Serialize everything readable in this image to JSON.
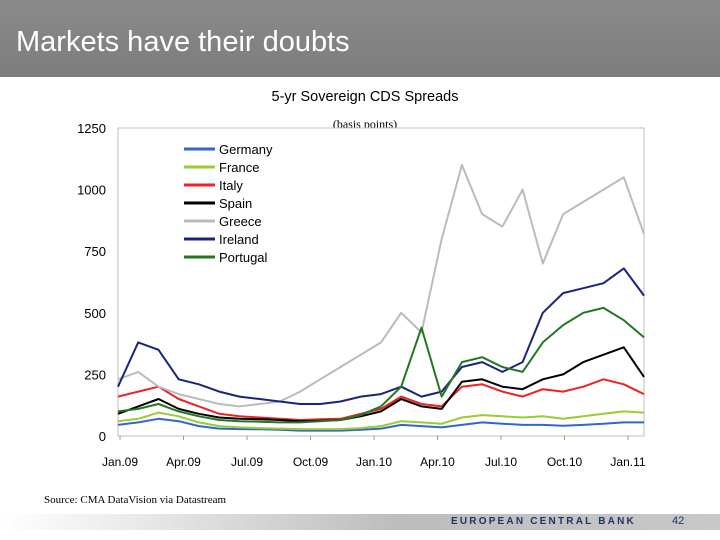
{
  "slide": {
    "title": "Markets have their doubts"
  },
  "chart_data": {
    "type": "line",
    "title": "5-yr Sovereign CDS Spreads",
    "subtitle": "(basis points)",
    "xlabel": "",
    "ylabel": "",
    "ylim": [
      0,
      1250
    ],
    "y_ticks": [
      0,
      250,
      500,
      750,
      1000,
      1250
    ],
    "x_ticks": [
      "Jan.09",
      "Apr.09",
      "Jul.09",
      "Oct.09",
      "Jan.10",
      "Apr.10",
      "Jul.10",
      "Oct.10",
      "Jan.11"
    ],
    "x_index_range": [
      0,
      26
    ],
    "legend_position": "top-left",
    "series": [
      {
        "name": "Germany",
        "color": "#3366cc",
        "x": [
          0,
          1,
          2,
          3,
          4,
          5,
          6,
          7,
          8,
          9,
          10,
          11,
          12,
          13,
          14,
          15,
          16,
          17,
          18,
          19,
          20,
          21,
          22,
          23,
          24,
          25,
          26
        ],
        "values": [
          45,
          55,
          70,
          60,
          40,
          30,
          28,
          27,
          25,
          22,
          22,
          22,
          25,
          30,
          45,
          40,
          35,
          45,
          55,
          50,
          45,
          45,
          42,
          45,
          50,
          55,
          55
        ]
      },
      {
        "name": "France",
        "color": "#99cc33",
        "x": [
          0,
          1,
          2,
          3,
          4,
          5,
          6,
          7,
          8,
          9,
          10,
          11,
          12,
          13,
          14,
          15,
          16,
          17,
          18,
          19,
          20,
          21,
          22,
          23,
          24,
          25,
          26
        ],
        "values": [
          60,
          70,
          95,
          80,
          55,
          40,
          35,
          32,
          30,
          28,
          28,
          28,
          32,
          40,
          60,
          55,
          50,
          75,
          85,
          80,
          75,
          80,
          70,
          80,
          90,
          100,
          95
        ]
      },
      {
        "name": "Italy",
        "color": "#ee2222",
        "x": [
          0,
          1,
          2,
          3,
          4,
          5,
          6,
          7,
          8,
          9,
          10,
          11,
          12,
          13,
          14,
          15,
          16,
          17,
          18,
          19,
          20,
          21,
          22,
          23,
          24,
          25,
          26
        ],
        "values": [
          160,
          180,
          200,
          150,
          120,
          90,
          80,
          75,
          70,
          65,
          68,
          70,
          90,
          110,
          160,
          130,
          120,
          200,
          210,
          180,
          160,
          190,
          180,
          200,
          230,
          210,
          170
        ]
      },
      {
        "name": "Spain",
        "color": "#000000",
        "x": [
          0,
          1,
          2,
          3,
          4,
          5,
          6,
          7,
          8,
          9,
          10,
          11,
          12,
          13,
          14,
          15,
          16,
          17,
          18,
          19,
          20,
          21,
          22,
          23,
          24,
          25,
          26
        ],
        "values": [
          90,
          120,
          150,
          110,
          90,
          75,
          70,
          68,
          65,
          60,
          62,
          65,
          80,
          100,
          150,
          120,
          110,
          220,
          230,
          200,
          190,
          230,
          250,
          300,
          330,
          360,
          240
        ]
      },
      {
        "name": "Greece",
        "color": "#bbbbbb",
        "x": [
          0,
          1,
          2,
          3,
          4,
          5,
          6,
          7,
          8,
          9,
          10,
          11,
          12,
          13,
          14,
          15,
          16,
          17,
          18,
          19,
          20,
          21,
          22,
          23,
          24,
          25,
          26
        ],
        "values": [
          230,
          260,
          200,
          170,
          150,
          130,
          120,
          130,
          140,
          180,
          230,
          280,
          330,
          380,
          500,
          420,
          800,
          1100,
          900,
          850,
          1000,
          700,
          900,
          950,
          1000,
          1050,
          820
        ]
      },
      {
        "name": "Ireland",
        "color": "#1a237e",
        "x": [
          0,
          1,
          2,
          3,
          4,
          5,
          6,
          7,
          8,
          9,
          10,
          11,
          12,
          13,
          14,
          15,
          16,
          17,
          18,
          19,
          20,
          21,
          22,
          23,
          24,
          25,
          26
        ],
        "values": [
          200,
          380,
          350,
          230,
          210,
          180,
          160,
          150,
          140,
          130,
          130,
          140,
          160,
          170,
          200,
          160,
          180,
          280,
          300,
          260,
          300,
          500,
          580,
          600,
          620,
          680,
          570
        ]
      },
      {
        "name": "Portugal",
        "color": "#227722",
        "x": [
          0,
          1,
          2,
          3,
          4,
          5,
          6,
          7,
          8,
          9,
          10,
          11,
          12,
          13,
          14,
          15,
          16,
          17,
          18,
          19,
          20,
          21,
          22,
          23,
          24,
          25,
          26
        ],
        "values": [
          100,
          110,
          130,
          100,
          80,
          65,
          60,
          58,
          55,
          55,
          60,
          65,
          85,
          120,
          200,
          440,
          160,
          300,
          320,
          280,
          260,
          380,
          450,
          500,
          520,
          470,
          400
        ]
      }
    ]
  },
  "source": "Source: CMA DataVision via Datastream",
  "footer": {
    "brand": "EUROPEAN CENTRAL BANK",
    "page": "42"
  }
}
